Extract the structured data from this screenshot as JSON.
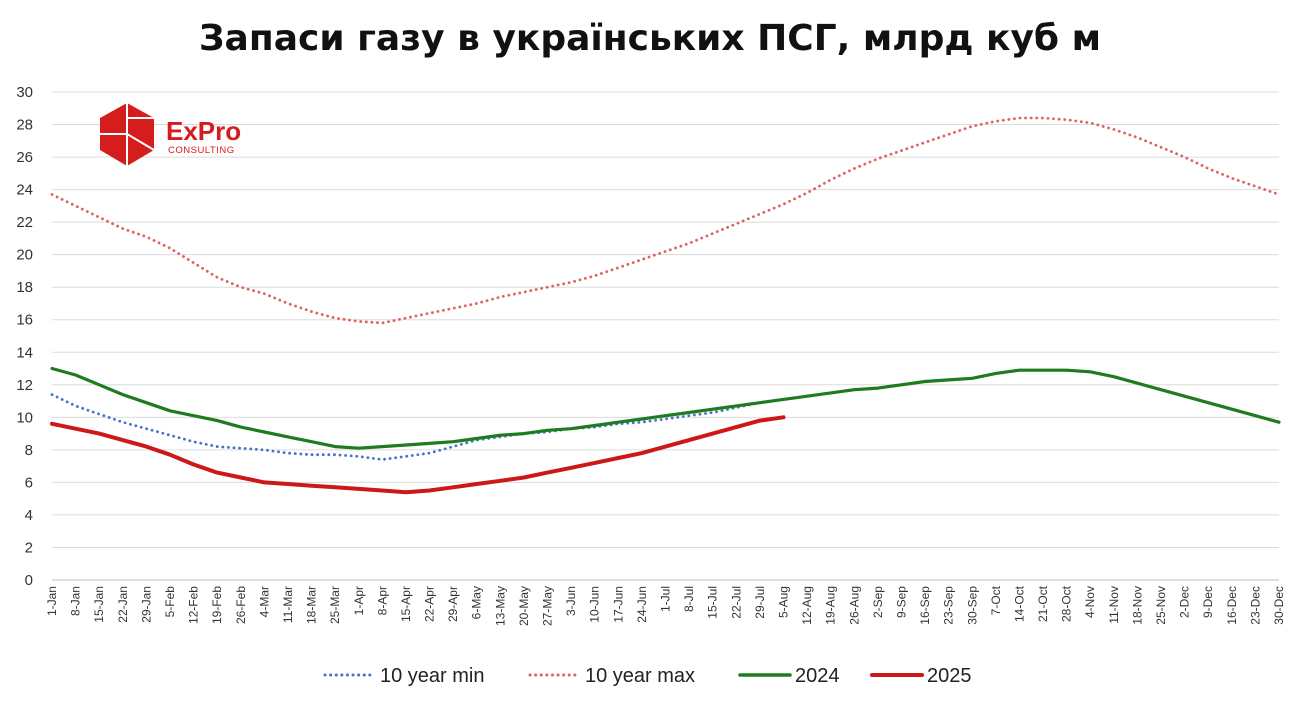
{
  "logo": {
    "name": "ExPro",
    "sub": "CONSULTING"
  },
  "chart_data": {
    "type": "line",
    "title": "Запаси газу в українських ПСГ, млрд куб м",
    "xlabel": "",
    "ylabel": "",
    "ylim": [
      0,
      30
    ],
    "yticks": [
      0,
      2,
      4,
      6,
      8,
      10,
      12,
      14,
      16,
      18,
      20,
      22,
      24,
      26,
      28,
      30
    ],
    "grid": true,
    "legend_position": "bottom",
    "x_tick_labels": [
      "1-Jan",
      "8-Jan",
      "15-Jan",
      "22-Jan",
      "29-Jan",
      "5-Feb",
      "12-Feb",
      "19-Feb",
      "26-Feb",
      "4-Mar",
      "11-Mar",
      "18-Mar",
      "25-Mar",
      "1-Apr",
      "8-Apr",
      "15-Apr",
      "22-Apr",
      "29-Apr",
      "6-May",
      "13-May",
      "20-May",
      "27-May",
      "3-Jun",
      "10-Jun",
      "17-Jun",
      "24-Jun",
      "1-Jul",
      "8-Jul",
      "15-Jul",
      "22-Jul",
      "29-Jul",
      "5-Aug",
      "12-Aug",
      "19-Aug",
      "26-Aug",
      "2-Sep",
      "9-Sep",
      "16-Sep",
      "23-Sep",
      "30-Sep",
      "7-Oct",
      "14-Oct",
      "21-Oct",
      "28-Oct",
      "4-Nov",
      "11-Nov",
      "18-Nov",
      "25-Nov",
      "2-Dec",
      "9-Dec",
      "16-Dec",
      "23-Dec",
      "30-Dec"
    ],
    "series": [
      {
        "name": "10 year min",
        "color": "#4472c4",
        "style": "dotted",
        "values": [
          11.4,
          10.7,
          10.2,
          9.7,
          9.3,
          8.9,
          8.5,
          8.2,
          8.1,
          8.0,
          7.8,
          7.7,
          7.7,
          7.6,
          7.4,
          7.6,
          7.8,
          8.2,
          8.6,
          8.8,
          9.0,
          9.1,
          9.3,
          9.4,
          9.6,
          9.7,
          9.9,
          10.1,
          10.3,
          10.6,
          10.9
        ]
      },
      {
        "name": "10 year max",
        "color": "#e06060",
        "style": "dotted",
        "values": [
          23.7,
          23.0,
          22.3,
          21.6,
          21.1,
          20.4,
          19.5,
          18.6,
          18.0,
          17.6,
          17.0,
          16.5,
          16.1,
          15.9,
          15.8,
          16.1,
          16.4,
          16.7,
          17.0,
          17.4,
          17.7,
          18.0,
          18.3,
          18.7,
          19.2,
          19.7,
          20.2,
          20.7,
          21.3,
          21.9,
          22.5,
          23.1,
          23.8,
          24.6,
          25.3,
          25.9,
          26.4,
          26.9,
          27.4,
          27.9,
          28.2,
          28.4,
          28.4,
          28.3,
          28.1,
          27.7,
          27.2,
          26.6,
          26.0,
          25.3,
          24.7,
          24.2,
          23.7
        ]
      },
      {
        "name": "2024",
        "color": "#1e7b1e",
        "style": "solid",
        "values": [
          13.0,
          12.6,
          12.0,
          11.4,
          10.9,
          10.4,
          10.1,
          9.8,
          9.4,
          9.1,
          8.8,
          8.5,
          8.2,
          8.1,
          8.2,
          8.3,
          8.4,
          8.5,
          8.7,
          8.9,
          9.0,
          9.2,
          9.3,
          9.5,
          9.7,
          9.9,
          10.1,
          10.3,
          10.5,
          10.7,
          10.9,
          11.1,
          11.3,
          11.5,
          11.7,
          11.8,
          12.0,
          12.2,
          12.3,
          12.4,
          12.7,
          12.9,
          12.9,
          12.9,
          12.8,
          12.5,
          12.1,
          11.7,
          11.3,
          10.9,
          10.5,
          10.1,
          9.7
        ]
      },
      {
        "name": "2025",
        "color": "#cc1818",
        "style": "solid",
        "values": [
          9.6,
          9.3,
          9.0,
          8.6,
          8.2,
          7.7,
          7.1,
          6.6,
          6.3,
          6.0,
          5.9,
          5.8,
          5.7,
          5.6,
          5.5,
          5.4,
          5.5,
          5.7,
          5.9,
          6.1,
          6.3,
          6.6,
          6.9,
          7.2,
          7.5,
          7.8,
          8.2,
          8.6,
          9.0,
          9.4,
          9.8,
          10.0
        ]
      }
    ]
  }
}
